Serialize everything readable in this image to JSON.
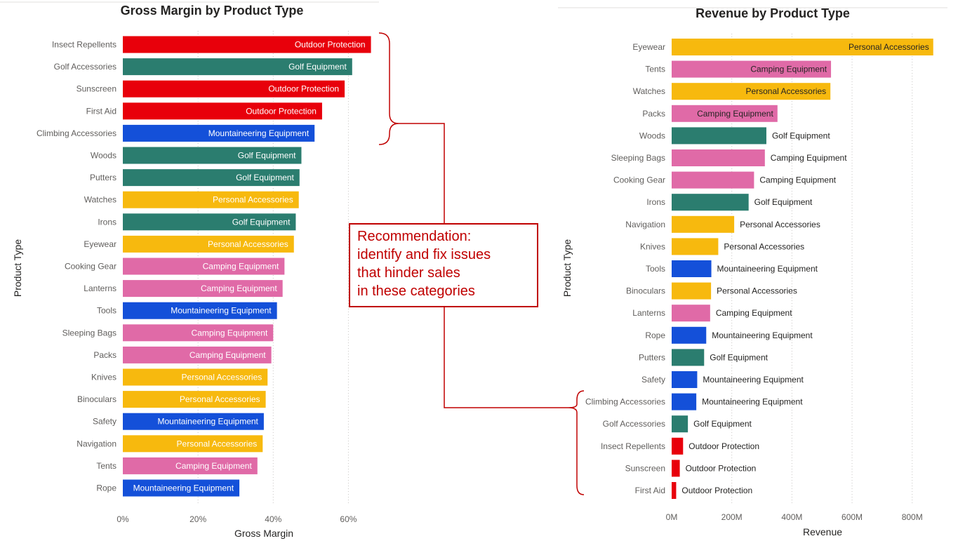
{
  "chart_data": [
    {
      "type": "bar",
      "orientation": "horizontal",
      "title": "Gross Margin by Product Type",
      "xlabel": "Gross Margin",
      "ylabel": "Product Type",
      "xlim": [
        0,
        0.7
      ],
      "xticks": [
        {
          "v": 0,
          "label": "0%"
        },
        {
          "v": 0.2,
          "label": "20%"
        },
        {
          "v": 0.4,
          "label": "40%"
        },
        {
          "v": 0.6,
          "label": "60%"
        }
      ],
      "grid": true,
      "label_position": "inside-end",
      "rows": [
        {
          "category": "Insect Repellents",
          "value": 0.66,
          "group": "Outdoor Protection"
        },
        {
          "category": "Golf Accessories",
          "value": 0.61,
          "group": "Golf Equipment"
        },
        {
          "category": "Sunscreen",
          "value": 0.59,
          "group": "Outdoor Protection"
        },
        {
          "category": "First Aid",
          "value": 0.53,
          "group": "Outdoor Protection"
        },
        {
          "category": "Climbing Accessories",
          "value": 0.51,
          "group": "Mountaineering Equipment"
        },
        {
          "category": "Woods",
          "value": 0.475,
          "group": "Golf Equipment"
        },
        {
          "category": "Putters",
          "value": 0.47,
          "group": "Golf Equipment"
        },
        {
          "category": "Watches",
          "value": 0.468,
          "group": "Personal Accessories"
        },
        {
          "category": "Irons",
          "value": 0.46,
          "group": "Golf Equipment"
        },
        {
          "category": "Eyewear",
          "value": 0.455,
          "group": "Personal Accessories"
        },
        {
          "category": "Cooking Gear",
          "value": 0.43,
          "group": "Camping Equipment"
        },
        {
          "category": "Lanterns",
          "value": 0.425,
          "group": "Camping Equipment"
        },
        {
          "category": "Tools",
          "value": 0.41,
          "group": "Mountaineering Equipment"
        },
        {
          "category": "Sleeping Bags",
          "value": 0.4,
          "group": "Camping Equipment"
        },
        {
          "category": "Packs",
          "value": 0.395,
          "group": "Camping Equipment"
        },
        {
          "category": "Knives",
          "value": 0.385,
          "group": "Personal Accessories"
        },
        {
          "category": "Binoculars",
          "value": 0.38,
          "group": "Personal Accessories"
        },
        {
          "category": "Safety",
          "value": 0.375,
          "group": "Mountaineering Equipment"
        },
        {
          "category": "Navigation",
          "value": 0.372,
          "group": "Personal Accessories"
        },
        {
          "category": "Tents",
          "value": 0.358,
          "group": "Camping Equipment"
        },
        {
          "category": "Rope",
          "value": 0.31,
          "group": "Mountaineering Equipment"
        }
      ]
    },
    {
      "type": "bar",
      "orientation": "horizontal",
      "title": "Revenue by Product Type",
      "xlabel": "Revenue",
      "ylabel": "Product Type",
      "xlim": [
        0,
        880
      ],
      "value_unit": "M",
      "xticks": [
        {
          "v": 0,
          "label": "0M"
        },
        {
          "v": 200,
          "label": "200M"
        },
        {
          "v": 400,
          "label": "400M"
        },
        {
          "v": 600,
          "label": "600M"
        },
        {
          "v": 800,
          "label": "800M"
        }
      ],
      "grid": true,
      "label_position": "outside-end",
      "rows": [
        {
          "category": "Eyewear",
          "value": 870,
          "group": "Personal Accessories"
        },
        {
          "category": "Tents",
          "value": 530,
          "group": "Camping Equipment"
        },
        {
          "category": "Watches",
          "value": 528,
          "group": "Personal Accessories"
        },
        {
          "category": "Packs",
          "value": 352,
          "group": "Camping Equipment"
        },
        {
          "category": "Woods",
          "value": 315,
          "group": "Golf Equipment"
        },
        {
          "category": "Sleeping Bags",
          "value": 310,
          "group": "Camping Equipment"
        },
        {
          "category": "Cooking Gear",
          "value": 274,
          "group": "Camping Equipment"
        },
        {
          "category": "Irons",
          "value": 256,
          "group": "Golf Equipment"
        },
        {
          "category": "Navigation",
          "value": 208,
          "group": "Personal Accessories"
        },
        {
          "category": "Knives",
          "value": 155,
          "group": "Personal Accessories"
        },
        {
          "category": "Tools",
          "value": 132,
          "group": "Mountaineering Equipment"
        },
        {
          "category": "Binoculars",
          "value": 131,
          "group": "Personal Accessories"
        },
        {
          "category": "Lanterns",
          "value": 128,
          "group": "Camping Equipment"
        },
        {
          "category": "Rope",
          "value": 115,
          "group": "Mountaineering Equipment"
        },
        {
          "category": "Putters",
          "value": 108,
          "group": "Golf Equipment"
        },
        {
          "category": "Safety",
          "value": 85,
          "group": "Mountaineering Equipment"
        },
        {
          "category": "Climbing Accessories",
          "value": 82,
          "group": "Mountaineering Equipment"
        },
        {
          "category": "Golf Accessories",
          "value": 54,
          "group": "Golf Equipment"
        },
        {
          "category": "Insect Repellents",
          "value": 38,
          "group": "Outdoor Protection"
        },
        {
          "category": "Sunscreen",
          "value": 27,
          "group": "Outdoor Protection"
        },
        {
          "category": "First Aid",
          "value": 15,
          "group": "Outdoor Protection"
        }
      ]
    }
  ],
  "group_colors": {
    "Outdoor Protection": "#e8000b",
    "Golf Equipment": "#2b7d6f",
    "Mountaineering Equipment": "#1450d9",
    "Personal Accessories": "#f7b90e",
    "Camping Equipment": "#e06aa7"
  },
  "annotation": {
    "lines": [
      "Recommendation:",
      "identify and fix issues",
      "that hinder sales",
      "in these categories"
    ],
    "color": "#c00000"
  }
}
